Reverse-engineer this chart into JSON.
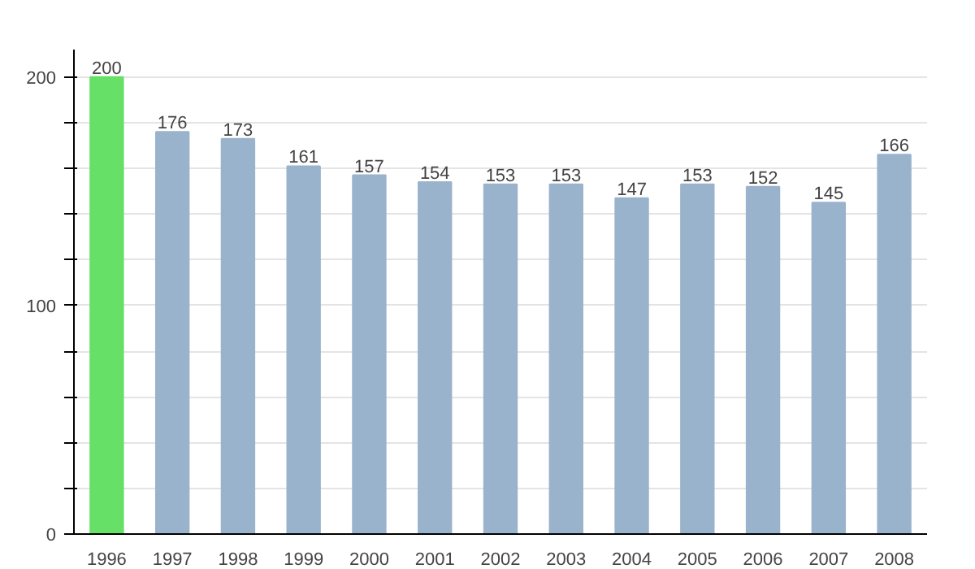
{
  "chart_data": {
    "type": "bar",
    "categories": [
      "1996",
      "1997",
      "1998",
      "1999",
      "2000",
      "2001",
      "2002",
      "2003",
      "2004",
      "2005",
      "2006",
      "2007",
      "2008"
    ],
    "values": [
      200,
      176,
      173,
      161,
      157,
      154,
      153,
      153,
      147,
      153,
      152,
      145,
      166
    ],
    "colors": [
      "#66e066",
      "#9ab3cc",
      "#9ab3cc",
      "#9ab3cc",
      "#9ab3cc",
      "#9ab3cc",
      "#9ab3cc",
      "#9ab3cc",
      "#9ab3cc",
      "#9ab3cc",
      "#9ab3cc",
      "#9ab3cc",
      "#9ab3cc"
    ],
    "ylim": [
      0,
      212
    ],
    "yticks": [
      0,
      {
        "value": 20,
        "label": null
      },
      {
        "value": 40,
        "label": null
      },
      {
        "value": 60,
        "label": null
      },
      {
        "value": 80,
        "label": null
      },
      100,
      {
        "value": 120,
        "label": null
      },
      {
        "value": 140,
        "label": null
      },
      {
        "value": 160,
        "label": null
      },
      {
        "value": 180,
        "label": null
      },
      200
    ],
    "grid": "y",
    "data_labels": true
  }
}
